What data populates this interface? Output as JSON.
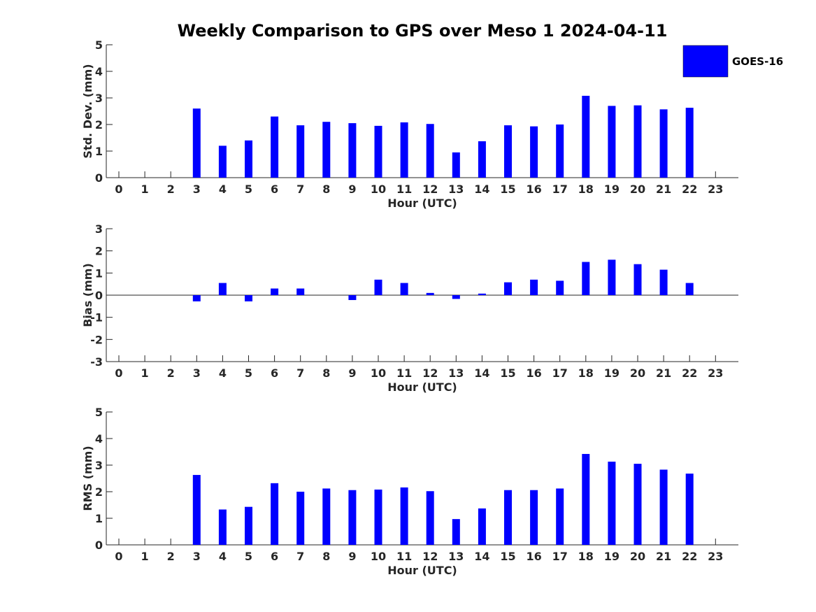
{
  "figure_title": "Weekly Comparison to GPS over Meso 1 2024-04-11",
  "bar_color": "#0000ff",
  "legend": {
    "label": "GOES-16"
  },
  "chart_data": [
    {
      "type": "bar",
      "title": "Weekly Comparison to GPS over Meso 1 2024-04-11",
      "xlabel": "Hour (UTC)",
      "ylabel": "Std. Dev. (mm)",
      "ylim": [
        0,
        5
      ],
      "yticks": [
        "0",
        "1",
        "2",
        "3",
        "4",
        "5"
      ],
      "categories": [
        "0",
        "1",
        "2",
        "3",
        "4",
        "5",
        "6",
        "7",
        "8",
        "9",
        "10",
        "11",
        "12",
        "13",
        "14",
        "15",
        "16",
        "17",
        "18",
        "19",
        "20",
        "21",
        "22",
        "23"
      ],
      "series": [
        {
          "name": "GOES-16",
          "values": [
            null,
            null,
            null,
            2.6,
            1.2,
            1.4,
            2.3,
            1.97,
            2.1,
            2.05,
            1.95,
            2.08,
            2.02,
            0.95,
            1.37,
            1.97,
            1.93,
            2.0,
            3.08,
            2.7,
            2.72,
            2.57,
            2.63,
            null
          ]
        }
      ]
    },
    {
      "type": "bar",
      "xlabel": "Hour (UTC)",
      "ylabel": "Bias (mm)",
      "ylim": [
        -3,
        3
      ],
      "yticks": [
        "-3",
        "-2",
        "-1",
        "0",
        "1",
        "2",
        "3"
      ],
      "categories": [
        "0",
        "1",
        "2",
        "3",
        "4",
        "5",
        "6",
        "7",
        "8",
        "9",
        "10",
        "11",
        "12",
        "13",
        "14",
        "15",
        "16",
        "17",
        "18",
        "19",
        "20",
        "21",
        "22",
        "23"
      ],
      "series": [
        {
          "name": "GOES-16",
          "values": [
            null,
            null,
            null,
            -0.28,
            0.55,
            -0.28,
            0.3,
            0.3,
            null,
            -0.22,
            0.7,
            0.55,
            0.1,
            -0.17,
            0.07,
            0.58,
            0.7,
            0.65,
            1.5,
            1.6,
            1.4,
            1.15,
            0.55,
            null
          ]
        }
      ]
    },
    {
      "type": "bar",
      "xlabel": "Hour (UTC)",
      "ylabel": "RMS (mm)",
      "ylim": [
        0,
        5
      ],
      "yticks": [
        "0",
        "1",
        "2",
        "3",
        "4",
        "5"
      ],
      "categories": [
        "0",
        "1",
        "2",
        "3",
        "4",
        "5",
        "6",
        "7",
        "8",
        "9",
        "10",
        "11",
        "12",
        "13",
        "14",
        "15",
        "16",
        "17",
        "18",
        "19",
        "20",
        "21",
        "22",
        "23"
      ],
      "series": [
        {
          "name": "GOES-16",
          "values": [
            null,
            null,
            null,
            2.63,
            1.33,
            1.43,
            2.32,
            2.0,
            2.12,
            2.06,
            2.08,
            2.16,
            2.02,
            0.97,
            1.37,
            2.06,
            2.06,
            2.12,
            3.42,
            3.13,
            3.05,
            2.83,
            2.68,
            null
          ]
        }
      ]
    }
  ]
}
